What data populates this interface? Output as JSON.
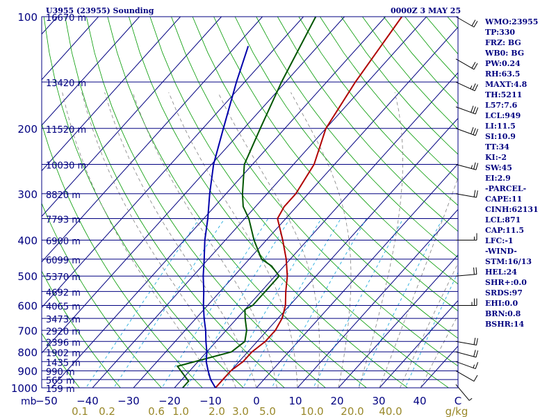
{
  "header": {
    "station": "U3955 (23955) Sounding",
    "time": "0000Z  3 MAY 25"
  },
  "indices": [
    "WMO:23955",
    "TP:330",
    "FRZ: BG",
    "WB0: BG",
    "PW:0.24",
    "RH:63.5",
    "MAXT:4.8",
    "TH:5211",
    "L57:7.6",
    "LCL:949",
    "LI:11.5",
    "SI:10.9",
    "TT:34",
    "KI:-2",
    "SW:45",
    "EI:2.9",
    "-PARCEL-",
    "CAPE:11",
    "CINH:62131",
    "LCL:871",
    "CAP:11.5",
    "LFC:-1",
    "-WIND-",
    "STM:16/13",
    "HEL:24",
    "SHR+:0.0",
    "SRDS:97",
    "EHI:0.0",
    "BRN:0.8",
    "BSHR:14"
  ],
  "colors": {
    "frame": "#000080",
    "isobar": "#000080",
    "isotherm": "#000080",
    "dry_adiabat": "#009900",
    "moist_adiabat": "#808080",
    "mixing_ratio": "#22aadd",
    "temperature": "#b00000",
    "dewpoint": "#005500",
    "parcel": "#0000aa",
    "wind": "#000000"
  },
  "chart_data": {
    "type": "line",
    "skew_t": true,
    "x_axis_unit": "mb",
    "y_scale": "log-pressure",
    "ylim": [
      1000,
      100
    ],
    "xlim": [
      -50,
      50
    ],
    "pressure_ticks": [
      100,
      200,
      300,
      400,
      500,
      600,
      700,
      800,
      900,
      1000
    ],
    "temp_ticks": [
      "−50",
      "−40",
      "−30",
      "−20",
      "−10",
      "0",
      "10",
      "20",
      "30",
      "40",
      "C"
    ],
    "mixing_ratio_label": [
      "0.1",
      "0.2",
      "0.6",
      "1.0",
      "2.0",
      "3.0",
      "5.0",
      "10.0",
      "20.0",
      "40.0",
      "g/kg"
    ],
    "height_labels": [
      {
        "p": 100,
        "h": "16670 m"
      },
      {
        "p": 150,
        "h": "13420 m"
      },
      {
        "p": 200,
        "h": "11520 m"
      },
      {
        "p": 250,
        "h": "10030 m"
      },
      {
        "p": 300,
        "h": "8820 m"
      },
      {
        "p": 350,
        "h": "7793 m"
      },
      {
        "p": 400,
        "h": "6900 m"
      },
      {
        "p": 450,
        "h": "6099 m"
      },
      {
        "p": 500,
        "h": "5370 m"
      },
      {
        "p": 550,
        "h": "4692 m"
      },
      {
        "p": 600,
        "h": "4065 m"
      },
      {
        "p": 650,
        "h": "3473 m"
      },
      {
        "p": 700,
        "h": "2920 m"
      },
      {
        "p": 750,
        "h": "2396 m"
      },
      {
        "p": 800,
        "h": "1902 m"
      },
      {
        "p": 850,
        "h": "1435 m"
      },
      {
        "p": 900,
        "h": "990 m"
      },
      {
        "p": 950,
        "h": "565 m"
      },
      {
        "p": 1000,
        "h": "159 m"
      }
    ],
    "series": [
      {
        "values": [
          [
            1020,
            -10.5
          ],
          [
            1000,
            -10
          ],
          [
            990,
            -10
          ],
          [
            950,
            -10
          ],
          [
            925,
            -10
          ],
          [
            900,
            -10
          ],
          [
            850,
            -9
          ],
          [
            800,
            -9
          ],
          [
            750,
            -8
          ],
          [
            700,
            -8
          ],
          [
            650,
            -9
          ],
          [
            600,
            -11
          ],
          [
            550,
            -14
          ],
          [
            500,
            -17
          ],
          [
            450,
            -21
          ],
          [
            400,
            -26
          ],
          [
            350,
            -32
          ],
          [
            325,
            -33
          ],
          [
            300,
            -33
          ],
          [
            250,
            -35
          ],
          [
            200,
            -40
          ],
          [
            150,
            -43
          ],
          [
            100,
            -46
          ]
        ]
      },
      {
        "values": [
          [
            1000,
            -18
          ],
          [
            960,
            -18
          ],
          [
            875,
            -24
          ],
          [
            800,
            -14
          ],
          [
            750,
            -13
          ],
          [
            700,
            -15
          ],
          [
            650,
            -18
          ],
          [
            615,
            -20
          ],
          [
            600,
            -19
          ],
          [
            550,
            -19
          ],
          [
            500,
            -19
          ],
          [
            470,
            -23
          ],
          [
            450,
            -27
          ],
          [
            400,
            -33
          ],
          [
            350,
            -39
          ],
          [
            325,
            -43
          ],
          [
            300,
            -46
          ],
          [
            250,
            -52
          ],
          [
            200,
            -56
          ],
          [
            150,
            -61
          ],
          [
            100,
            -67
          ]
        ]
      },
      {
        "values": [
          [
            1000,
            -10
          ],
          [
            950,
            -13
          ],
          [
            900,
            -15.5
          ],
          [
            850,
            -18
          ],
          [
            800,
            -20
          ],
          [
            750,
            -22.5
          ],
          [
            700,
            -25
          ],
          [
            650,
            -28
          ],
          [
            600,
            -31
          ],
          [
            550,
            -34
          ],
          [
            500,
            -37.5
          ],
          [
            450,
            -41
          ],
          [
            400,
            -45
          ],
          [
            350,
            -49
          ],
          [
            300,
            -54
          ],
          [
            250,
            -59.5
          ],
          [
            200,
            -65
          ],
          [
            150,
            -72
          ],
          [
            120,
            -77
          ]
        ]
      }
    ],
    "wind_barbs": [
      {
        "p": 980,
        "dir": 320,
        "spd": 5
      },
      {
        "p": 900,
        "dir": 300,
        "spd": 10
      },
      {
        "p": 850,
        "dir": 290,
        "spd": 15
      },
      {
        "p": 800,
        "dir": 285,
        "spd": 20
      },
      {
        "p": 750,
        "dir": 280,
        "spd": 20
      },
      {
        "p": 600,
        "dir": 270,
        "spd": 25
      },
      {
        "p": 500,
        "dir": 265,
        "spd": 20
      },
      {
        "p": 400,
        "dir": 270,
        "spd": 15
      },
      {
        "p": 300,
        "dir": 280,
        "spd": 20
      },
      {
        "p": 250,
        "dir": 285,
        "spd": 25
      },
      {
        "p": 200,
        "dir": 290,
        "spd": 30
      },
      {
        "p": 175,
        "dir": 290,
        "spd": 30
      },
      {
        "p": 150,
        "dir": 295,
        "spd": 25
      },
      {
        "p": 130,
        "dir": 300,
        "spd": 20
      },
      {
        "p": 100,
        "dir": 300,
        "spd": 20
      }
    ]
  }
}
